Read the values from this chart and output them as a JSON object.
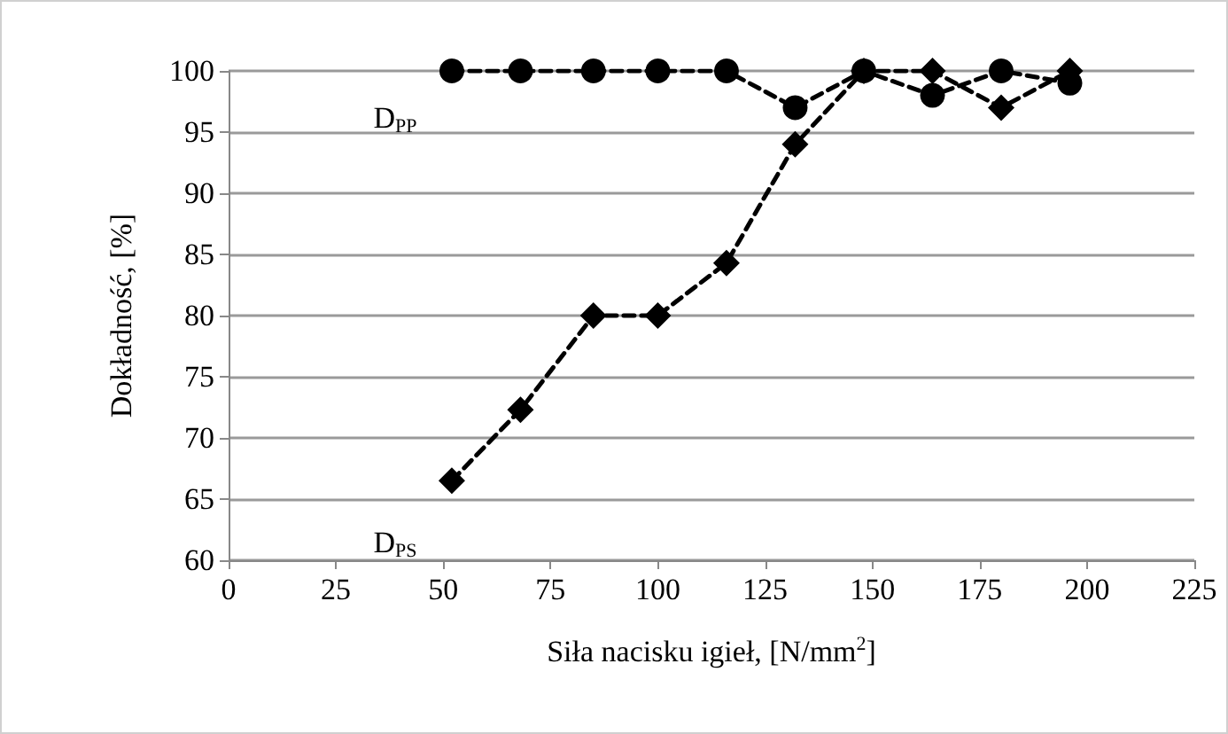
{
  "chart_data": {
    "type": "line",
    "xlabel": "Siła nacisku igieł, [N/mm$^{2}$]",
    "ylabel": "Dokładność, [%]",
    "x": [
      52,
      68,
      85,
      100,
      116,
      132,
      148,
      164,
      180,
      196
    ],
    "series": [
      {
        "name": "D$_{PP}$",
        "color": "#000000",
        "marker": "circle",
        "values": [
          100,
          100,
          100,
          100,
          100,
          97,
          100,
          98,
          100,
          99
        ]
      },
      {
        "name": "D$_{PS}$",
        "color": "#000000",
        "marker": "diamond",
        "values": [
          66.5,
          72.3,
          80,
          80,
          84.3,
          94,
          100,
          100,
          97,
          100
        ]
      }
    ],
    "line_style": "dashed",
    "grid": "y",
    "legend": false,
    "xlim": [
      0,
      225
    ],
    "xticks": [
      0,
      25,
      50,
      75,
      100,
      125,
      150,
      175,
      200,
      225
    ],
    "ylim": [
      60,
      100
    ],
    "yticks": [
      60,
      65,
      70,
      75,
      80,
      85,
      90,
      95,
      100
    ]
  }
}
